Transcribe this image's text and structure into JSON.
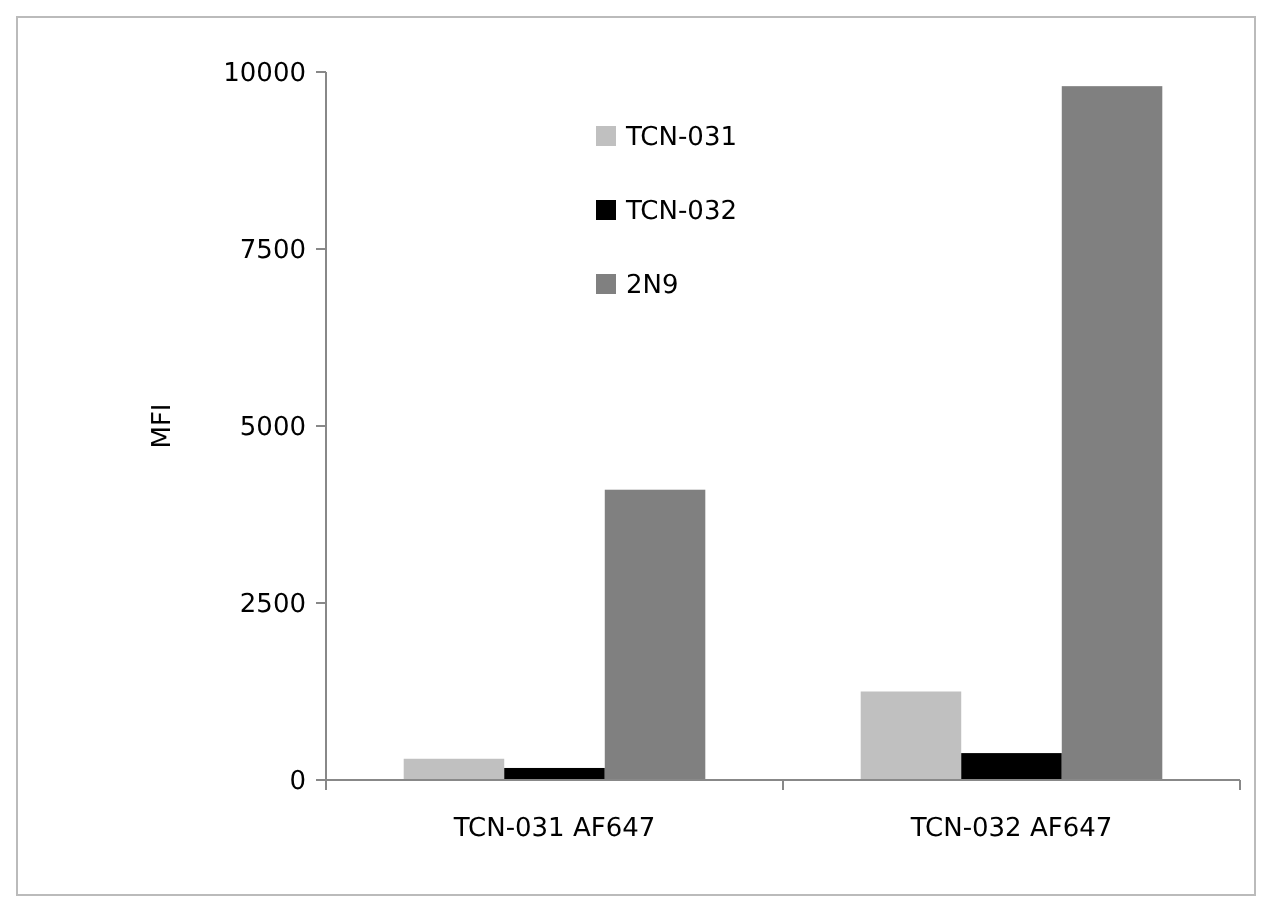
{
  "chart_data": {
    "type": "bar",
    "ylabel": "MFI",
    "categories": [
      "TCN-031 AF647",
      "TCN-032 AF647"
    ],
    "series": [
      {
        "name": "TCN-031",
        "color": "#c0c0c0",
        "values": [
          300,
          1250
        ]
      },
      {
        "name": "TCN-032",
        "color": "#000000",
        "values": [
          170,
          380
        ]
      },
      {
        "name": "2N9",
        "color": "#808080",
        "values": [
          4100,
          9800
        ]
      }
    ],
    "ylim": [
      0,
      10000
    ],
    "yticks": [
      0,
      2500,
      5000,
      7500,
      10000
    ],
    "grid": false,
    "legend": "top"
  }
}
